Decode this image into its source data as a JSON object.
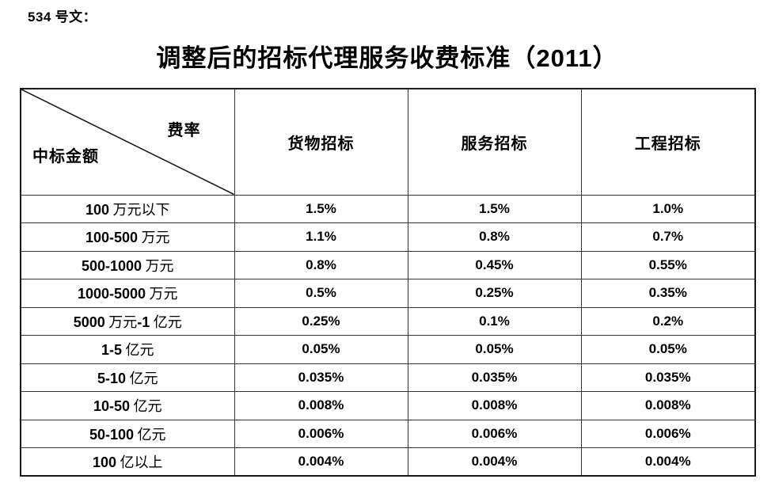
{
  "doc_label": "534 号文：",
  "title": "调整后的招标代理服务收费标准（2011）",
  "table": {
    "corner": {
      "top_right": "费率",
      "bottom_left": "中标金额"
    },
    "columns": [
      "货物招标",
      "服务招标",
      "工程招标"
    ],
    "rows": [
      {
        "label": "100 万元以下",
        "values": [
          "1.5%",
          "1.5%",
          "1.0%"
        ]
      },
      {
        "label": "100-500 万元",
        "values": [
          "1.1%",
          "0.8%",
          "0.7%"
        ]
      },
      {
        "label": "500-1000 万元",
        "values": [
          "0.8%",
          "0.45%",
          "0.55%"
        ]
      },
      {
        "label": "1000-5000 万元",
        "values": [
          "0.5%",
          "0.25%",
          "0.35%"
        ]
      },
      {
        "label": "5000 万元-1 亿元",
        "values": [
          "0.25%",
          "0.1%",
          "0.2%"
        ]
      },
      {
        "label": "1-5 亿元",
        "values": [
          "0.05%",
          "0.05%",
          "0.05%"
        ]
      },
      {
        "label": "5-10 亿元",
        "values": [
          "0.035%",
          "0.035%",
          "0.035%"
        ]
      },
      {
        "label": "10-50 亿元",
        "values": [
          "0.008%",
          "0.008%",
          "0.008%"
        ]
      },
      {
        "label": "50-100 亿元",
        "values": [
          "0.006%",
          "0.006%",
          "0.006%"
        ]
      },
      {
        "label": "100 亿以上",
        "values": [
          "0.004%",
          "0.004%",
          "0.004%"
        ]
      }
    ]
  },
  "colors": {
    "text": "#000000",
    "border_outer": "#1a1a1a",
    "border_inner": "#333333",
    "background": "#ffffff"
  }
}
